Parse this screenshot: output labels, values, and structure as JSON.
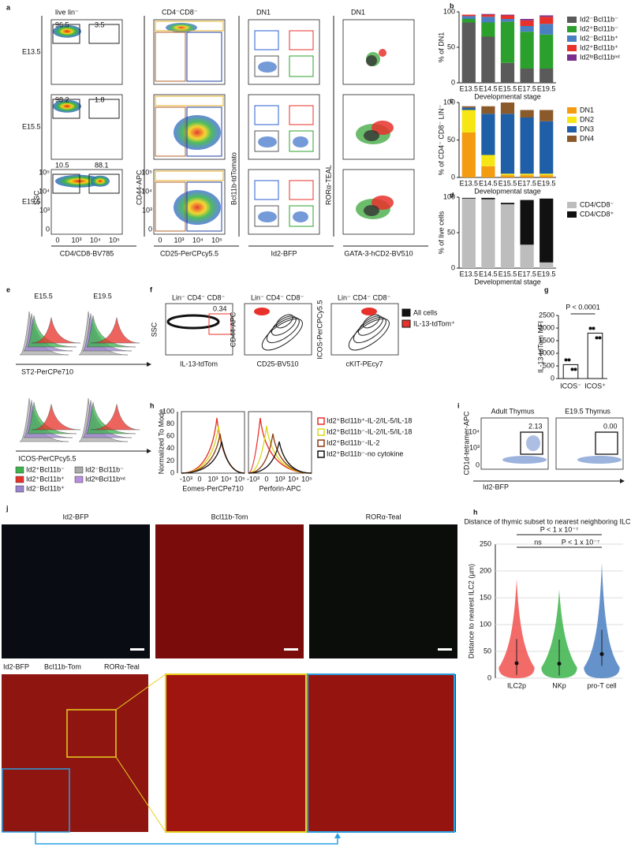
{
  "panel_letters": [
    "a",
    "b",
    "c",
    "d",
    "e",
    "f",
    "g",
    "h",
    "i",
    "j",
    "h"
  ],
  "panel_a": {
    "col_titles": [
      "live lin⁻",
      "CD4⁻CD8⁻",
      "DN1",
      "DN1"
    ],
    "row_labels": [
      "E13.5",
      "E15.5",
      "E19.5"
    ],
    "gates": [
      [
        "96.5",
        "3.5"
      ],
      [
        "98.2",
        "1.8"
      ],
      [
        "10.5",
        "88.1"
      ]
    ],
    "axis_labels": [
      "SSC",
      "CD4/CD8-BV785",
      "CD44-APC",
      "CD25-PerCPcy5.5",
      "Bcl11b-tdTomato",
      "Id2-BFP",
      "RORα-TEAL",
      "GATA-3-hCD2-BV510"
    ],
    "ticks": [
      "0",
      "10³",
      "10⁴",
      "10⁵"
    ]
  },
  "panel_e": {
    "titles": [
      "E15.5",
      "E19.5"
    ],
    "axis_labels": [
      "ST2-PerCPe710",
      "ICOS-PerCPcy5.5"
    ],
    "legend": [
      "Id2⁺Bcl11b⁻",
      "Id2⁺Bcl11b⁺",
      "Id2⁻Bcl11b⁺",
      "Id2⁻Bcl11b⁻",
      "Id2ˡᵒBcl11bⁱⁿᵗ"
    ]
  },
  "panel_f": {
    "titles": [
      "Lin⁻ CD4⁻ CD8⁻",
      "Lin⁻ CD4⁻ CD8⁻",
      "Lin⁻ CD4⁻ CD8⁻"
    ],
    "gate": "0.34",
    "axis_labels": [
      "SSC",
      "IL-13-tdTom",
      "CD44-APC",
      "CD25-BV510",
      "ICOS-PerCPCy5.5",
      "cKIT-PEcy7"
    ],
    "legend": [
      "All cells",
      "IL-13-tdTom⁺"
    ],
    "ticks": [
      "0",
      "10³",
      "10⁴",
      "10⁵"
    ]
  },
  "panel_h": {
    "ylabel": "Normalized To Mode",
    "yticks": [
      "0",
      "20",
      "40",
      "60",
      "80",
      "100"
    ],
    "xticks": [
      "-10³",
      "0",
      "10³",
      "10⁴",
      "10⁵"
    ],
    "axis_labels": [
      "Eomes-PerCPe710",
      "Perforin-APC"
    ],
    "legend": [
      "Id2⁺Bcl11b⁺-IL-2/IL-5/IL-18",
      "Id2⁺Bcl11b⁻-IL-2/IL-5/IL-18",
      "Id2⁺Bcl11b⁻-IL-2",
      "Id2⁺Bcl11b⁻-no cytokine"
    ]
  },
  "panel_i": {
    "titles": [
      "Adult Thymus",
      "E19.5 Thymus"
    ],
    "gates": [
      "2.13",
      "0.00"
    ],
    "axis_labels": [
      "CD1d-tetramer-APC",
      "Id2-BFP"
    ],
    "ticks": [
      "0",
      "10³",
      "10⁴",
      "-10³",
      "10⁵"
    ]
  },
  "panel_j": {
    "channels": [
      "Id2-BFP",
      "Bcl11b-Tom",
      "RORα-Teal"
    ]
  },
  "chart_data": [
    {
      "type": "stacked",
      "ylabel": "% of DN1",
      "xlabel": "Developmental stage",
      "categories": [
        "E13.5",
        "E14.5",
        "E15.5",
        "E17.5",
        "E19.5"
      ],
      "ylim": [
        0,
        100
      ],
      "yticks": [
        0,
        50,
        100
      ],
      "series": [
        {
          "name": "Id2⁻Bcl11b⁻",
          "color": "#5a5a5a",
          "values": [
            85,
            65,
            28,
            20,
            20
          ]
        },
        {
          "name": "Id2⁺Bcl11b⁻",
          "color": "#2ca02c",
          "values": [
            5,
            20,
            58,
            52,
            48
          ]
        },
        {
          "name": "Id2⁻Bcl11b⁺",
          "color": "#4a7fc1",
          "values": [
            4,
            8,
            4,
            8,
            15
          ]
        },
        {
          "name": "Id2⁺Bcl11b⁺",
          "color": "#e8312a",
          "values": [
            2,
            3,
            5,
            8,
            10
          ]
        },
        {
          "name": "Id2ˡᵒBcl11bⁱⁿᵗ",
          "color": "#7b2d8e",
          "values": [
            0,
            1,
            1,
            2,
            2
          ]
        }
      ]
    },
    {
      "type": "stacked",
      "ylabel": "% of CD4⁻ CD8⁻ LIN⁻",
      "xlabel": "Developmental stage",
      "categories": [
        "E13.5",
        "E14.5",
        "E15.5",
        "E17.5",
        "E19.5"
      ],
      "ylim": [
        0,
        100
      ],
      "yticks": [
        0,
        50,
        100
      ],
      "series": [
        {
          "name": "DN1",
          "color": "#f39c12",
          "values": [
            60,
            15,
            3,
            3,
            3
          ]
        },
        {
          "name": "DN2",
          "color": "#f5e614",
          "values": [
            30,
            15,
            2,
            2,
            2
          ]
        },
        {
          "name": "DN3",
          "color": "#1f5fa8",
          "values": [
            3,
            55,
            80,
            75,
            70
          ]
        },
        {
          "name": "DN4",
          "color": "#8b5a2b",
          "values": [
            2,
            10,
            15,
            10,
            15
          ]
        }
      ]
    },
    {
      "type": "stacked",
      "ylabel": "% of live cells",
      "xlabel": "Developmental stage",
      "categories": [
        "E13.5",
        "E14.5",
        "E15.5",
        "E17.5",
        "E19.5"
      ],
      "ylim": [
        0,
        100
      ],
      "yticks": [
        0,
        50,
        100
      ],
      "series": [
        {
          "name": "CD4/CD8⁻",
          "color": "#bdbdbd",
          "values": [
            98,
            97,
            90,
            33,
            8
          ]
        },
        {
          "name": "CD4/CD8⁺",
          "color": "#111111",
          "values": [
            1,
            2,
            2,
            63,
            90
          ]
        }
      ]
    },
    {
      "type": "bar",
      "ylabel": "IL-13-tdTom MFI",
      "categories": [
        "ICOS⁻",
        "ICOS⁺"
      ],
      "values": [
        550,
        1800
      ],
      "color": "#ffffff",
      "ylim": [
        0,
        2500
      ],
      "yticks": [
        0,
        500,
        1000,
        1500,
        2000,
        2500
      ],
      "annotation": "P < 0.0001"
    },
    {
      "type": "violin",
      "title": "Distance of thymic subset to nearest neighboring ILC2p",
      "ylabel": "Distance to nearest ILC2 (µm)",
      "categories": [
        "ILC2p",
        "NKp",
        "pro-T cell"
      ],
      "values": [
        28,
        27,
        45
      ],
      "colors": [
        "#f0514e",
        "#3cb44b",
        "#4a7fc1"
      ],
      "ylim": [
        0,
        250
      ],
      "yticks": [
        0,
        50,
        100,
        150,
        200,
        250
      ],
      "annotations": [
        "P < 1 x 10⁻⁷",
        "ns",
        "P < 1 x 10⁻⁷"
      ],
      "grid": true
    }
  ]
}
